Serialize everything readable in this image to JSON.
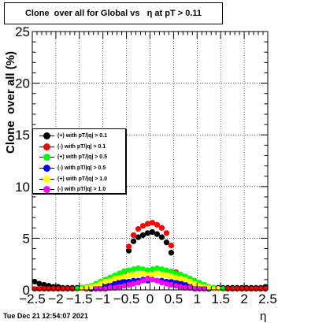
{
  "title": "Clone  over all for Global vs   η at pT > 0.11",
  "timestamp": "Tue Dec 21 12:54:07 2021",
  "chart_data": {
    "type": "scatter",
    "xlabel": "η",
    "ylabel": "Clone  over all (%)",
    "xlim": [
      -2.5,
      2.5
    ],
    "ylim": [
      0,
      25
    ],
    "x_ticks": [
      -2.5,
      -2,
      -1.5,
      -1,
      -0.5,
      0,
      0.5,
      1,
      1.5,
      2,
      2.5
    ],
    "x_tick_labels": [
      "−2.5",
      "−2",
      "−1.5",
      "−1",
      "−0.5",
      "0",
      "0.5",
      "1",
      "1.5",
      "2",
      "2.5"
    ],
    "y_ticks": [
      0,
      5,
      10,
      15,
      20,
      25
    ],
    "y_tick_labels": [
      "0",
      "5",
      "10",
      "15",
      "20",
      "25"
    ],
    "grid": true,
    "legend_position": "left-middle",
    "series": [
      {
        "name": "(+) with pT/|q| > 0.1",
        "color": "#000000",
        "x": [
          -2.45,
          -2.35,
          -2.25,
          -2.15,
          -2.05,
          -1.95,
          -1.85,
          -1.75,
          -1.65,
          -1.55,
          -1.45,
          -1.35,
          -1.25,
          -1.15,
          -1.05,
          -0.95,
          -0.85,
          -0.75,
          -0.65,
          -0.55,
          -0.45,
          -0.35,
          -0.25,
          -0.15,
          -0.05,
          0.05,
          0.15,
          0.25,
          0.35,
          0.45,
          0.55,
          0.65,
          0.75,
          0.85,
          0.95,
          1.05,
          1.15,
          1.25,
          1.35,
          1.45,
          1.55,
          1.65,
          1.75,
          1.85,
          1.95,
          2.05,
          2.15,
          2.25,
          2.35,
          2.45
        ],
        "y": [
          0.8,
          0.6,
          0.5,
          0.4,
          0.3,
          0.3,
          0.2,
          0.2,
          0.2,
          0.2,
          0.2,
          0.2,
          0.2,
          0.2,
          0.2,
          0.2,
          0.3,
          0.5,
          0.9,
          1.8,
          3.8,
          4.7,
          5.1,
          5.3,
          5.5,
          5.6,
          5.4,
          5.1,
          4.6,
          3.6,
          1.7,
          0.8,
          0.5,
          0.3,
          0.2,
          0.2,
          0.2,
          0.2,
          0.2,
          0.2,
          0.2,
          0.2,
          0.2,
          0.2,
          0.2,
          0.2,
          0.2,
          0.2,
          0.2,
          0.3
        ]
      },
      {
        "name": "(-) with pT/|q| > 0.1",
        "color": "#ff0000",
        "x": [
          -2.45,
          -2.35,
          -2.25,
          -2.15,
          -2.05,
          -1.95,
          -1.85,
          -1.75,
          -1.65,
          -1.55,
          -1.45,
          -1.35,
          -1.25,
          -1.15,
          -1.05,
          -0.95,
          -0.85,
          -0.75,
          -0.65,
          -0.55,
          -0.45,
          -0.35,
          -0.25,
          -0.15,
          -0.05,
          0.05,
          0.15,
          0.25,
          0.35,
          0.45,
          0.55,
          0.65,
          0.75,
          0.85,
          0.95,
          1.05,
          1.15,
          1.25,
          1.35,
          1.45,
          1.55,
          1.65,
          1.75,
          1.85,
          1.95,
          2.05,
          2.15,
          2.25,
          2.35,
          2.45
        ],
        "y": [
          0.1,
          0.1,
          0.1,
          0.1,
          0.1,
          0.1,
          0.1,
          0.1,
          0.1,
          0.1,
          0.1,
          0.1,
          0.1,
          0.1,
          0.1,
          0.1,
          0.2,
          0.4,
          0.8,
          1.7,
          4.2,
          5.3,
          5.9,
          6.2,
          6.4,
          6.5,
          6.3,
          6.0,
          5.5,
          4.3,
          1.7,
          0.8,
          0.4,
          0.2,
          0.1,
          0.1,
          0.1,
          0.1,
          0.1,
          0.1,
          0.1,
          0.1,
          0.1,
          0.1,
          0.1,
          0.1,
          0.1,
          0.1,
          0.1,
          0.1
        ]
      },
      {
        "name": "(+) with pT/|q| > 0.5",
        "color": "#00ff00",
        "x": [
          -1.55,
          -1.45,
          -1.35,
          -1.25,
          -1.15,
          -1.05,
          -0.95,
          -0.85,
          -0.75,
          -0.65,
          -0.55,
          -0.45,
          -0.35,
          -0.25,
          -0.15,
          -0.05,
          0.05,
          0.15,
          0.25,
          0.35,
          0.45,
          0.55,
          0.65,
          0.75,
          0.85,
          0.95,
          1.05,
          1.15,
          1.25,
          1.35,
          1.45,
          1.55
        ],
        "y": [
          0.1,
          0.2,
          0.3,
          0.4,
          0.6,
          0.8,
          1.0,
          1.2,
          1.4,
          1.6,
          1.8,
          1.9,
          2.0,
          2.1,
          2.0,
          1.9,
          2.0,
          2.1,
          2.0,
          1.9,
          1.8,
          1.6,
          1.5,
          1.3,
          1.1,
          0.9,
          0.7,
          0.5,
          0.3,
          0.2,
          0.1,
          0.1
        ]
      },
      {
        "name": "(-) with pT/|q| > 0.5",
        "color": "#0000ff",
        "x": [
          -1.25,
          -1.15,
          -1.05,
          -0.95,
          -0.85,
          -0.75,
          -0.65,
          -0.55,
          -0.45,
          -0.35,
          -0.25,
          -0.15,
          -0.05,
          0.05,
          0.15,
          0.25,
          0.35,
          0.45,
          0.55,
          0.65,
          0.75,
          0.85,
          0.95,
          1.05,
          1.15,
          1.25
        ],
        "y": [
          0.1,
          0.2,
          0.3,
          0.4,
          0.5,
          0.6,
          0.7,
          0.8,
          0.8,
          0.9,
          0.9,
          1.0,
          0.9,
          1.0,
          0.9,
          0.9,
          0.8,
          0.8,
          0.7,
          0.6,
          0.5,
          0.4,
          0.3,
          0.2,
          0.1,
          0.1
        ]
      },
      {
        "name": "(+) with pT/|q| > 1.0",
        "color": "#ffff00",
        "x": [
          -1.45,
          -1.35,
          -1.25,
          -1.15,
          -1.05,
          -0.95,
          -0.85,
          -0.75,
          -0.65,
          -0.55,
          -0.45,
          -0.35,
          -0.25,
          -0.15,
          -0.05,
          0.05,
          0.15,
          0.25,
          0.35,
          0.45,
          0.55,
          0.65,
          0.75,
          0.85,
          0.95,
          1.05,
          1.15,
          1.25,
          1.35,
          1.45
        ],
        "y": [
          0.1,
          0.2,
          0.3,
          0.4,
          0.6,
          0.8,
          0.9,
          1.1,
          1.2,
          1.3,
          1.4,
          1.5,
          1.5,
          1.6,
          1.5,
          1.5,
          1.6,
          1.5,
          1.4,
          1.3,
          1.2,
          1.1,
          1.0,
          0.8,
          0.6,
          0.4,
          0.3,
          0.2,
          0.1,
          0.1
        ]
      },
      {
        "name": "(-) with pT/|q| > 1.0",
        "color": "#ff00ff",
        "x": [
          -1.15,
          -1.05,
          -0.95,
          -0.85,
          -0.75,
          -0.65,
          -0.55,
          -0.45,
          -0.35,
          -0.25,
          -0.15,
          -0.05,
          0.05,
          0.15,
          0.25,
          0.35,
          0.45,
          0.55,
          0.65,
          0.75,
          0.85,
          0.95,
          1.05,
          1.15
        ],
        "y": [
          0.1,
          0.1,
          0.1,
          0.2,
          0.2,
          0.3,
          0.4,
          0.5,
          0.6,
          0.7,
          0.9,
          1.1,
          1.0,
          0.9,
          0.7,
          0.6,
          0.5,
          0.4,
          0.3,
          0.2,
          0.2,
          0.1,
          0.1,
          0.1
        ]
      }
    ]
  }
}
